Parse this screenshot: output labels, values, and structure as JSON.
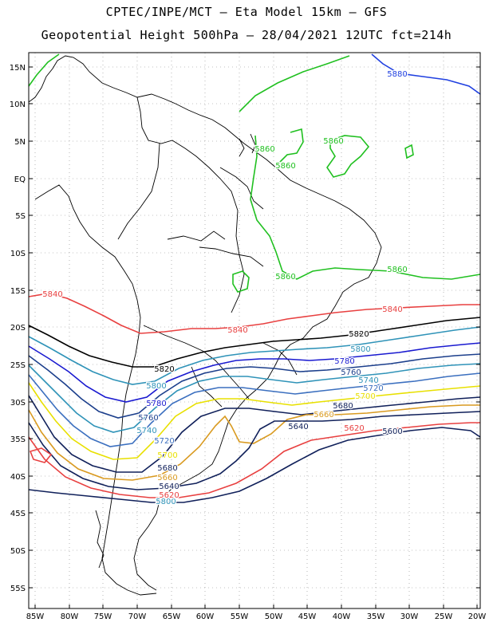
{
  "header": {
    "title_line1": "CPTEC/INPE/MCT –  Eta Model 15km – GFS",
    "title_line2": "Geopotential Height 500hPa – 28/04/2021 12UTC fct=214h"
  },
  "axes": {
    "lat_labels": [
      "15N",
      "10N",
      "5N",
      "EQ",
      "5S",
      "10S",
      "15S",
      "20S",
      "25S",
      "30S",
      "35S",
      "40S",
      "45S",
      "50S",
      "55S"
    ],
    "lon_labels": [
      "85W",
      "80W",
      "75W",
      "70W",
      "65W",
      "60W",
      "55W",
      "50W",
      "45W",
      "40W",
      "35W",
      "30W",
      "25W",
      "20W"
    ]
  },
  "contours": [
    {
      "value": "5880",
      "color": "#2040e0"
    },
    {
      "value": "5860",
      "color": "#20c020"
    },
    {
      "value": "5840",
      "color": "#e84040"
    },
    {
      "value": "5820",
      "color": "#000000"
    },
    {
      "value": "5800",
      "color": "#2f93b8"
    },
    {
      "value": "5780",
      "color": "#1a1ad0"
    },
    {
      "value": "5760",
      "color": "#1c3f8c"
    },
    {
      "value": "5740",
      "color": "#2f93b8"
    },
    {
      "value": "5720",
      "color": "#3b6fbf"
    },
    {
      "value": "5700",
      "color": "#e8e000"
    },
    {
      "value": "5680",
      "color": "#10205a"
    },
    {
      "value": "5660",
      "color": "#d99a20"
    },
    {
      "value": "5640",
      "color": "#10205a"
    },
    {
      "value": "5620",
      "color": "#e84040"
    },
    {
      "value": "5600",
      "color": "#10205a"
    }
  ]
}
